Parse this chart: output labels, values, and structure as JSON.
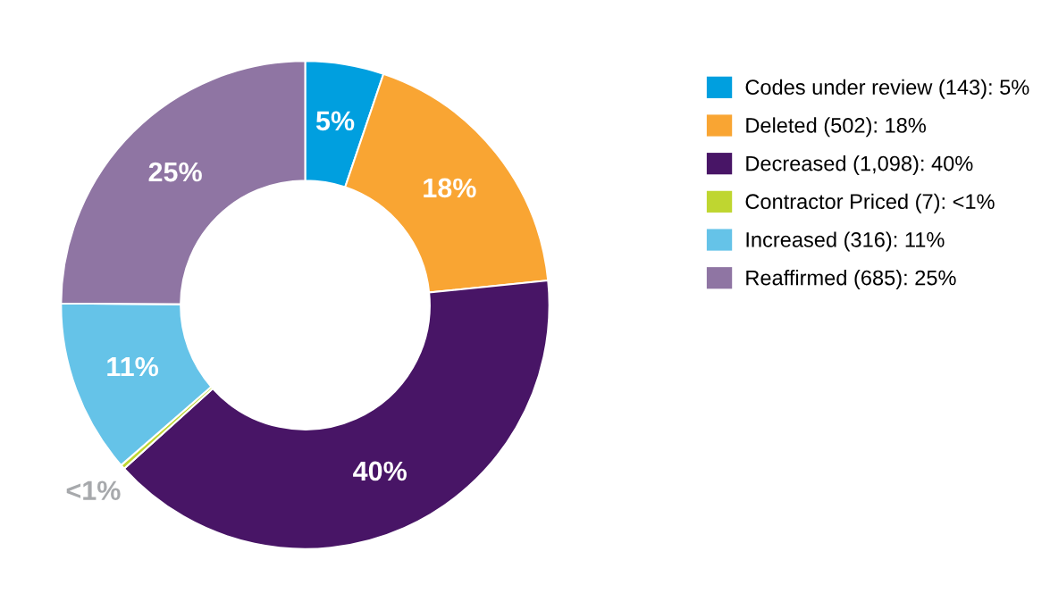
{
  "chart_data": {
    "type": "donut",
    "categories": [
      "Codes under review (143): 5%",
      "Deleted (502): 18%",
      "Decreased (1,098): 40%",
      "Contractor Priced (7): <1%",
      "Increased (316): 11%",
      "Reaffirmed (685): 25%"
    ],
    "values": [
      5.2,
      18.2,
      39.9,
      0.3,
      11.5,
      24.9
    ],
    "colors": [
      "#009fdf",
      "#f9a533",
      "#481566",
      "#bfd630",
      "#65c3e8",
      "#8f75a3"
    ],
    "value_labels": [
      "5%",
      "18%",
      "40%",
      "<1%",
      "11%",
      "25%"
    ],
    "legend": "right"
  }
}
